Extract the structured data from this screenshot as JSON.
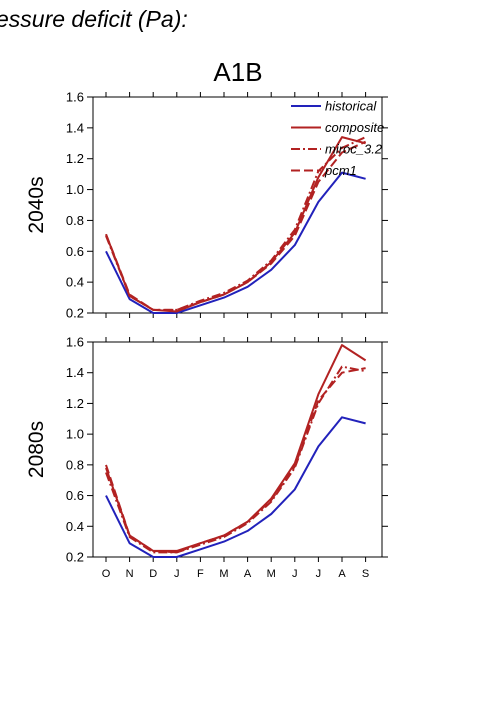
{
  "header_text": "essure deficit (Pa):",
  "scenario_title": "A1B",
  "colors": {
    "historical": "#2222bb",
    "future": "#b22222"
  },
  "chart_data": [
    {
      "type": "line",
      "row_label": "2040s",
      "categories": [
        "O",
        "N",
        "D",
        "J",
        "F",
        "M",
        "A",
        "M",
        "J",
        "J",
        "A",
        "S"
      ],
      "ylim": [
        0.2,
        1.6
      ],
      "yticks": [
        "0.2",
        "0.4",
        "0.6",
        "0.8",
        "1.0",
        "1.2",
        "1.4",
        "1.6"
      ],
      "show_x_labels": false,
      "legend": "top-right",
      "series": [
        {
          "name": "historical",
          "style": "solid",
          "values": [
            0.6,
            0.29,
            0.2,
            0.2,
            0.25,
            0.3,
            0.37,
            0.48,
            0.64,
            0.92,
            1.11,
            1.07
          ]
        },
        {
          "name": "composite",
          "style": "solid",
          "values": [
            0.71,
            0.31,
            0.22,
            0.21,
            0.27,
            0.32,
            0.4,
            0.53,
            0.72,
            1.08,
            1.34,
            1.3
          ]
        },
        {
          "name": "miroc_3.2",
          "style": "dashdot",
          "values": [
            0.7,
            0.31,
            0.22,
            0.22,
            0.28,
            0.33,
            0.41,
            0.54,
            0.74,
            1.12,
            1.27,
            1.34
          ]
        },
        {
          "name": "pcm1",
          "style": "dashed",
          "values": [
            0.71,
            0.32,
            0.22,
            0.22,
            0.27,
            0.32,
            0.4,
            0.52,
            0.7,
            1.05,
            1.24,
            1.31
          ]
        }
      ]
    },
    {
      "type": "line",
      "row_label": "2080s",
      "categories": [
        "O",
        "N",
        "D",
        "J",
        "F",
        "M",
        "A",
        "M",
        "J",
        "J",
        "A",
        "S"
      ],
      "ylim": [
        0.2,
        1.6
      ],
      "yticks": [
        "0.2",
        "0.4",
        "0.6",
        "0.8",
        "1.0",
        "1.2",
        "1.4",
        "1.6"
      ],
      "show_x_labels": true,
      "series": [
        {
          "name": "historical",
          "style": "solid",
          "values": [
            0.6,
            0.29,
            0.2,
            0.2,
            0.25,
            0.3,
            0.37,
            0.48,
            0.64,
            0.92,
            1.11,
            1.07
          ]
        },
        {
          "name": "composite",
          "style": "solid",
          "values": [
            0.78,
            0.34,
            0.24,
            0.24,
            0.29,
            0.34,
            0.43,
            0.58,
            0.81,
            1.26,
            1.58,
            1.48
          ]
        },
        {
          "name": "miroc_3.2",
          "style": "dashdot",
          "values": [
            0.75,
            0.33,
            0.23,
            0.23,
            0.28,
            0.33,
            0.42,
            0.56,
            0.78,
            1.2,
            1.44,
            1.41
          ]
        },
        {
          "name": "pcm1",
          "style": "dashed",
          "values": [
            0.8,
            0.34,
            0.24,
            0.23,
            0.29,
            0.34,
            0.43,
            0.57,
            0.79,
            1.22,
            1.4,
            1.43
          ]
        }
      ]
    }
  ]
}
